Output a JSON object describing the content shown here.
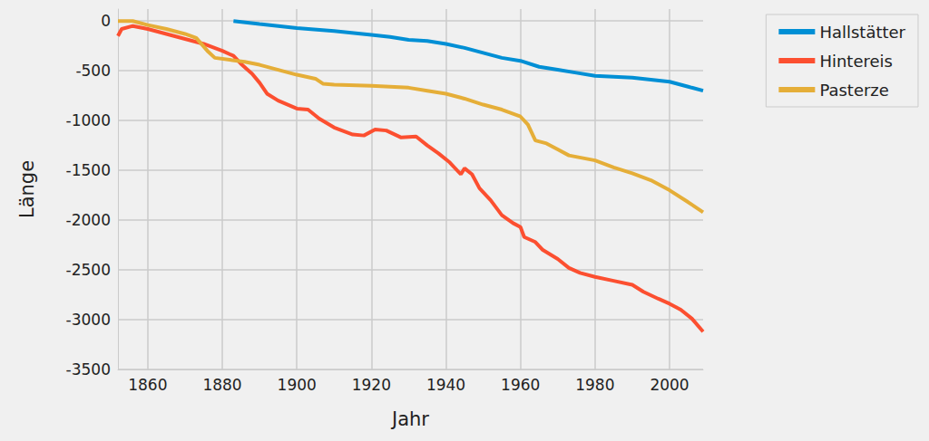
{
  "chart_data": {
    "type": "line",
    "x_label": "Jahr",
    "y_label": "Länge",
    "xlim": [
      1852,
      2009
    ],
    "xticks": [
      1860,
      1880,
      1900,
      1920,
      1940,
      1960,
      1980,
      2000
    ],
    "ylim": [
      -3500,
      120
    ],
    "yticks": [
      -3500,
      -3000,
      -2500,
      -2000,
      -1500,
      -1000,
      -500,
      0
    ],
    "grid": true,
    "legend": "right",
    "line_style": "solid",
    "series": [
      {
        "name": "Hallstätter",
        "color": "#008fd5",
        "x": [
          1883,
          1890,
          1900,
          1910,
          1920,
          1925,
          1930,
          1935,
          1940,
          1945,
          1950,
          1955,
          1960,
          1965,
          1970,
          1975,
          1980,
          1985,
          1990,
          1995,
          2000,
          2005,
          2009
        ],
        "values": [
          0,
          -30,
          -70,
          -100,
          -140,
          -160,
          -190,
          -200,
          -230,
          -270,
          -320,
          -370,
          -400,
          -460,
          -490,
          -520,
          -550,
          -560,
          -570,
          -590,
          -610,
          -660,
          -700
        ]
      },
      {
        "name": "Hintereis",
        "color": "#fc4f30",
        "x": [
          1852,
          1853,
          1856,
          1860,
          1865,
          1870,
          1875,
          1880,
          1883,
          1885,
          1888,
          1890,
          1892,
          1895,
          1900,
          1903,
          1906,
          1910,
          1915,
          1918,
          1921,
          1924,
          1928,
          1932,
          1935,
          1938,
          1941,
          1944,
          1945,
          1947,
          1949,
          1952,
          1955,
          1958,
          1960,
          1961,
          1964,
          1966,
          1970,
          1973,
          1976,
          1980,
          1985,
          1990,
          1993,
          1997,
          2000,
          2003,
          2006,
          2009
        ],
        "values": [
          -150,
          -80,
          -50,
          -80,
          -130,
          -180,
          -230,
          -300,
          -350,
          -430,
          -530,
          -620,
          -730,
          -800,
          -880,
          -890,
          -980,
          -1070,
          -1140,
          -1150,
          -1090,
          -1100,
          -1170,
          -1160,
          -1250,
          -1330,
          -1420,
          -1540,
          -1480,
          -1540,
          -1680,
          -1800,
          -1950,
          -2030,
          -2070,
          -2170,
          -2220,
          -2300,
          -2390,
          -2480,
          -2530,
          -2570,
          -2610,
          -2650,
          -2720,
          -2790,
          -2840,
          -2900,
          -2990,
          -3120
        ]
      },
      {
        "name": "Pasterze",
        "color": "#e5ae38",
        "x": [
          1852,
          1856,
          1860,
          1865,
          1870,
          1873,
          1876,
          1878,
          1882,
          1886,
          1890,
          1895,
          1900,
          1905,
          1907,
          1910,
          1920,
          1930,
          1935,
          1940,
          1945,
          1950,
          1955,
          1960,
          1962,
          1964,
          1967,
          1970,
          1973,
          1980,
          1985,
          1990,
          1995,
          2000,
          2005,
          2009
        ],
        "values": [
          0,
          0,
          -40,
          -80,
          -130,
          -170,
          -300,
          -370,
          -390,
          -410,
          -440,
          -490,
          -540,
          -580,
          -630,
          -640,
          -650,
          -670,
          -700,
          -730,
          -780,
          -840,
          -890,
          -960,
          -1040,
          -1200,
          -1230,
          -1290,
          -1350,
          -1400,
          -1470,
          -1530,
          -1600,
          -1700,
          -1820,
          -1920
        ]
      }
    ]
  }
}
